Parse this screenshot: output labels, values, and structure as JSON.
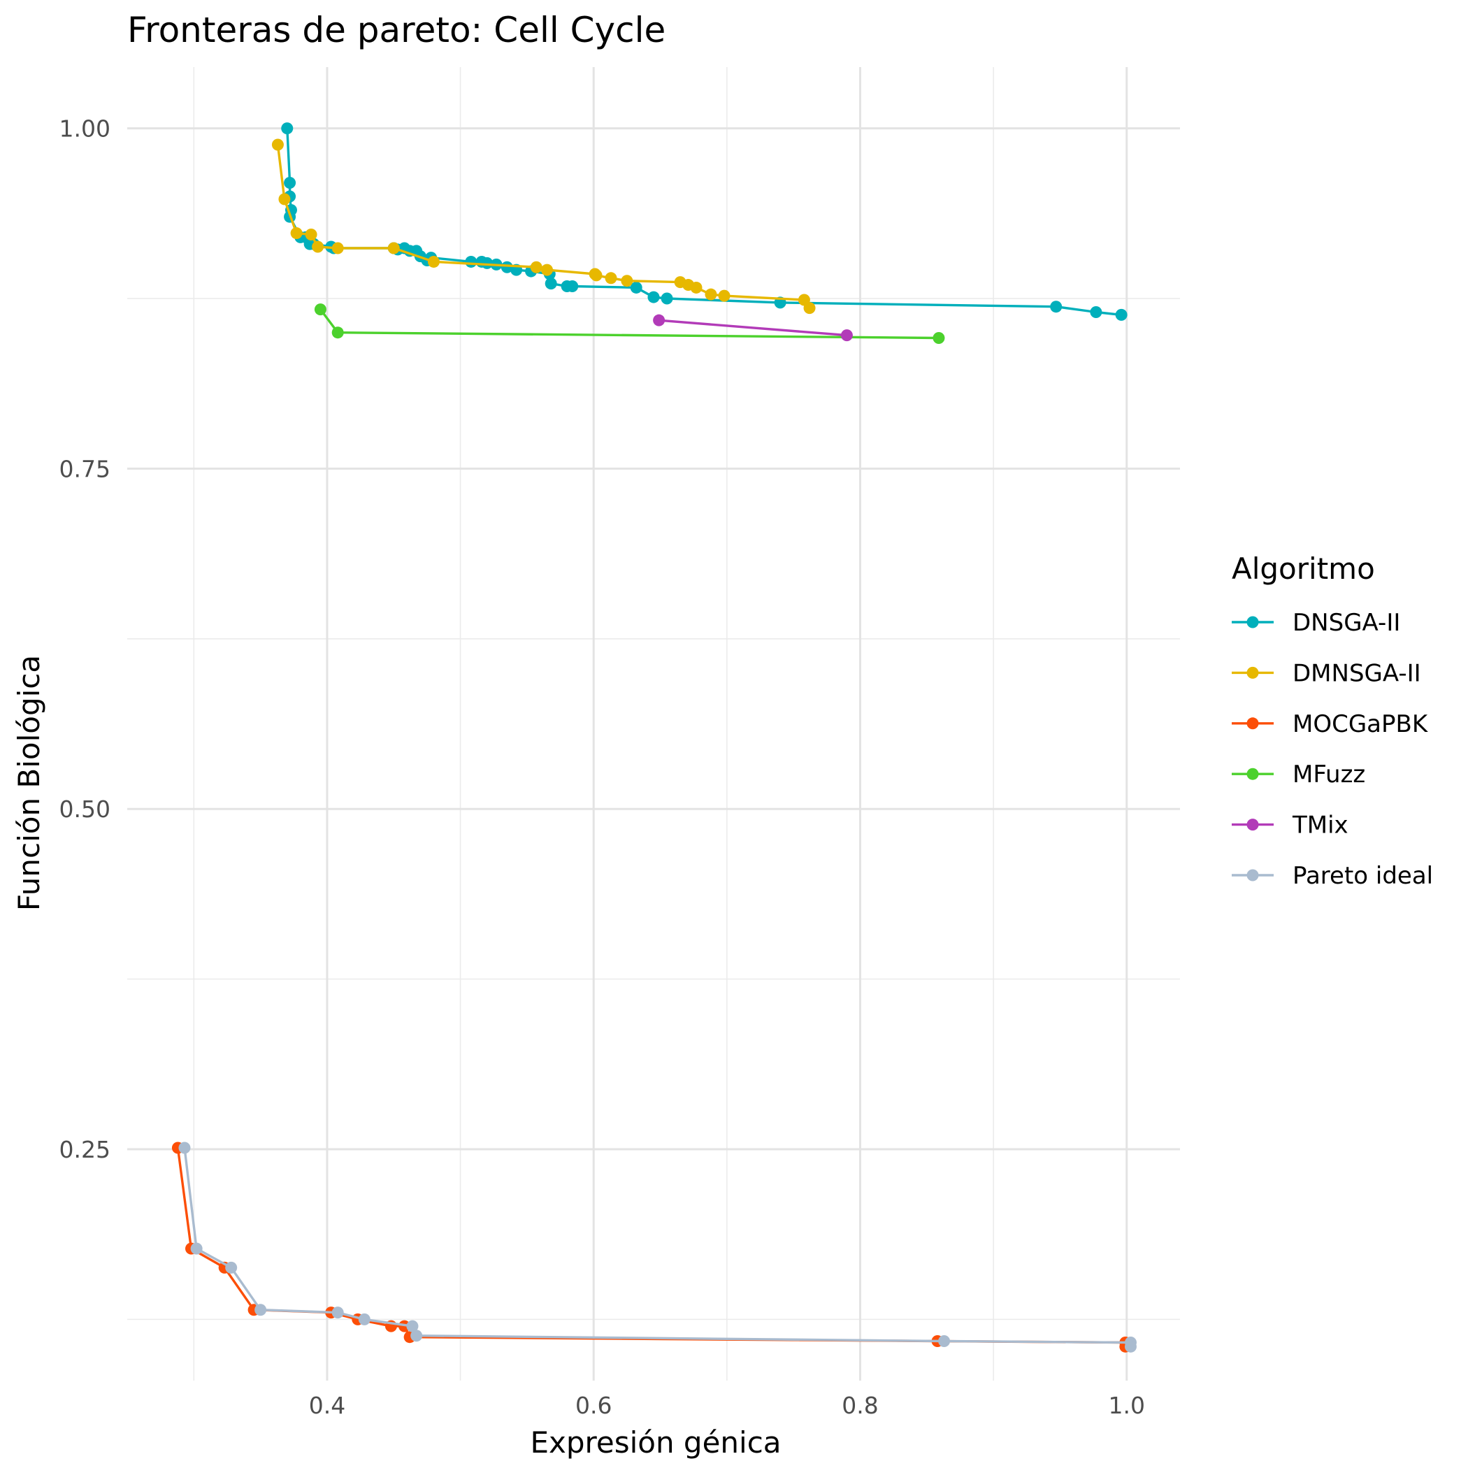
{
  "chart_data": {
    "type": "line",
    "title": "Fronteras de pareto: Cell Cycle",
    "xlabel": "Expresión génica",
    "ylabel": "Función Biológica",
    "xlim": [
      0.25,
      1.04
    ],
    "ylim": [
      0.08,
      1.045
    ],
    "x_ticks": [
      {
        "value": 0.4,
        "label": "0.4"
      },
      {
        "value": 0.6,
        "label": "0.6"
      },
      {
        "value": 0.8,
        "label": "0.8"
      },
      {
        "value": 1.0,
        "label": "1.0"
      }
    ],
    "y_ticks": [
      {
        "value": 0.25,
        "label": "0.25"
      },
      {
        "value": 0.5,
        "label": "0.50"
      },
      {
        "value": 0.75,
        "label": "0.75"
      },
      {
        "value": 1.0,
        "label": "1.00"
      }
    ],
    "grid": true,
    "legend_title": "Algoritmo",
    "legend_position": "right",
    "series": [
      {
        "name": "DNSGA-II",
        "color": "#00AFBB",
        "points": [
          [
            0.37,
            1.0
          ],
          [
            0.372,
            0.96
          ],
          [
            0.372,
            0.95
          ],
          [
            0.373,
            0.94
          ],
          [
            0.372,
            0.935
          ],
          [
            0.38,
            0.92
          ],
          [
            0.384,
            0.92
          ],
          [
            0.387,
            0.915
          ],
          [
            0.39,
            0.915
          ],
          [
            0.403,
            0.913
          ],
          [
            0.405,
            0.912
          ],
          [
            0.45,
            0.912
          ],
          [
            0.453,
            0.911
          ],
          [
            0.458,
            0.912
          ],
          [
            0.462,
            0.91
          ],
          [
            0.467,
            0.91
          ],
          [
            0.47,
            0.906
          ],
          [
            0.475,
            0.903
          ],
          [
            0.478,
            0.905
          ],
          [
            0.508,
            0.902
          ],
          [
            0.516,
            0.902
          ],
          [
            0.52,
            0.901
          ],
          [
            0.527,
            0.9
          ],
          [
            0.535,
            0.898
          ],
          [
            0.542,
            0.896
          ],
          [
            0.553,
            0.895
          ],
          [
            0.567,
            0.893
          ],
          [
            0.568,
            0.886
          ],
          [
            0.58,
            0.884
          ],
          [
            0.584,
            0.884
          ],
          [
            0.632,
            0.883
          ],
          [
            0.645,
            0.876
          ],
          [
            0.655,
            0.875
          ],
          [
            0.74,
            0.872
          ],
          [
            0.947,
            0.869
          ],
          [
            0.977,
            0.865
          ],
          [
            0.996,
            0.863
          ]
        ]
      },
      {
        "name": "DMNSGA-II",
        "color": "#E7B800",
        "points": [
          [
            0.363,
            0.988
          ],
          [
            0.368,
            0.948
          ],
          [
            0.377,
            0.923
          ],
          [
            0.388,
            0.922
          ],
          [
            0.393,
            0.913
          ],
          [
            0.408,
            0.912
          ],
          [
            0.45,
            0.912
          ],
          [
            0.48,
            0.902
          ],
          [
            0.557,
            0.898
          ],
          [
            0.565,
            0.896
          ],
          [
            0.601,
            0.893
          ],
          [
            0.602,
            0.892
          ],
          [
            0.613,
            0.89
          ],
          [
            0.625,
            0.888
          ],
          [
            0.665,
            0.887
          ],
          [
            0.671,
            0.885
          ],
          [
            0.677,
            0.883
          ],
          [
            0.688,
            0.878
          ],
          [
            0.698,
            0.877
          ],
          [
            0.758,
            0.874
          ],
          [
            0.762,
            0.868
          ]
        ]
      },
      {
        "name": "MOCGaPBK",
        "color": "#FC4E07",
        "points": [
          [
            0.288,
            0.251
          ],
          [
            0.298,
            0.177
          ],
          [
            0.323,
            0.163
          ],
          [
            0.345,
            0.132
          ],
          [
            0.403,
            0.13
          ],
          [
            0.423,
            0.125
          ],
          [
            0.448,
            0.12
          ],
          [
            0.458,
            0.12
          ],
          [
            0.462,
            0.112
          ],
          [
            0.858,
            0.109
          ],
          [
            0.999,
            0.108
          ],
          [
            0.999,
            0.105
          ]
        ]
      },
      {
        "name": "MFuzz",
        "color": "#4CD12D",
        "points": [
          [
            0.395,
            0.867
          ],
          [
            0.408,
            0.85
          ],
          [
            0.859,
            0.846
          ]
        ]
      },
      {
        "name": "TMix",
        "color": "#B23BB8",
        "points": [
          [
            0.649,
            0.859
          ],
          [
            0.79,
            0.848
          ]
        ]
      },
      {
        "name": "Pareto ideal",
        "color": "#A9BBCF",
        "points": [
          [
            0.293,
            0.251
          ],
          [
            0.302,
            0.177
          ],
          [
            0.328,
            0.163
          ],
          [
            0.35,
            0.132
          ],
          [
            0.408,
            0.13
          ],
          [
            0.428,
            0.125
          ],
          [
            0.464,
            0.12
          ],
          [
            0.467,
            0.113
          ],
          [
            0.863,
            0.109
          ],
          [
            1.003,
            0.108
          ],
          [
            1.003,
            0.105
          ]
        ]
      }
    ]
  }
}
